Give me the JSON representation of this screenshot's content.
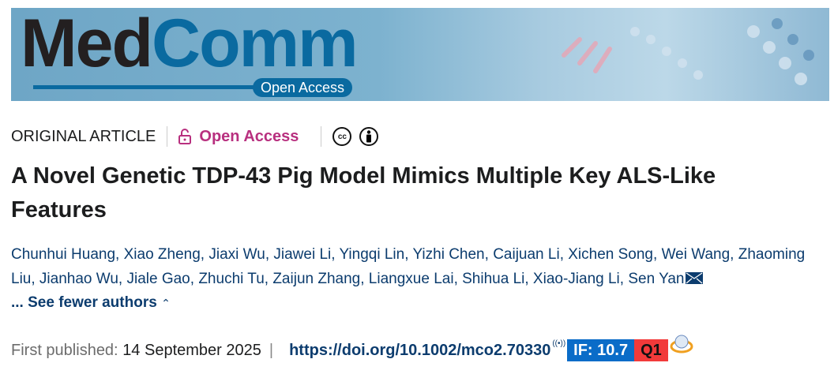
{
  "banner": {
    "logo_part1": "Med",
    "logo_part2": "Comm",
    "logo_badge": "Open Access"
  },
  "article_type": "ORIGINAL ARTICLE",
  "access": {
    "label": "Open Access",
    "icon": "unlock-icon",
    "color": "#b8307f"
  },
  "license_icons": [
    "creative-commons-icon",
    "attribution-icon"
  ],
  "title": "A Novel Genetic TDP-43 Pig Model Mimics Multiple Key ALS-Like Features",
  "authors": [
    "Chunhui Huang",
    "Xiao Zheng",
    "Jiaxi Wu",
    "Jiawei Li",
    "Yingqi Lin",
    "Yizhi Chen",
    "Caijuan Li",
    "Xichen Song",
    "Wei Wang",
    "Zhaoming Liu",
    "Jianhao Wu",
    "Jiale Gao",
    "Zhuchi Tu",
    "Zaijun Zhang",
    "Liangxue Lai",
    "Shihua Li",
    "Xiao-Jiang Li",
    "Sen Yan"
  ],
  "toggle_authors": "... See fewer authors",
  "published": {
    "label": "First published:",
    "date": "14 September 2025",
    "separator": "|",
    "doi": "https://doi.org/10.1002/mco2.70330"
  },
  "badges": {
    "impact_factor": "IF: 10.7",
    "quartile": "Q1"
  }
}
